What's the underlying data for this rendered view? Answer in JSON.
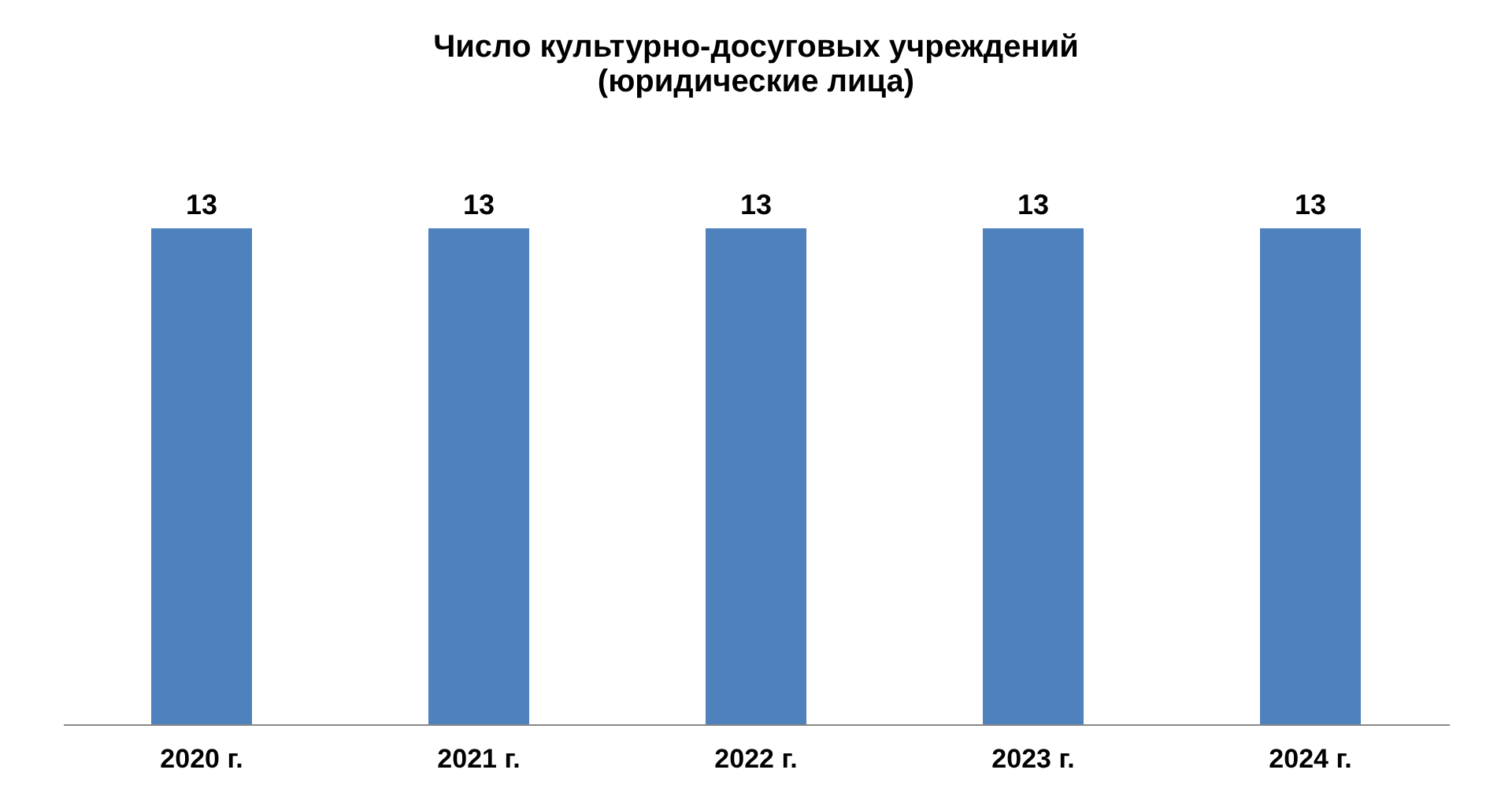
{
  "chart_data": {
    "type": "bar",
    "title": "Число культурно-досуговых учреждений\n(юридические лица)",
    "categories": [
      "2020 г.",
      "2021 г.",
      "2022 г.",
      "2023 г.",
      "2024 г."
    ],
    "values": [
      13,
      13,
      13,
      13,
      13
    ],
    "color": "#4f81bd",
    "data_labels": true
  }
}
